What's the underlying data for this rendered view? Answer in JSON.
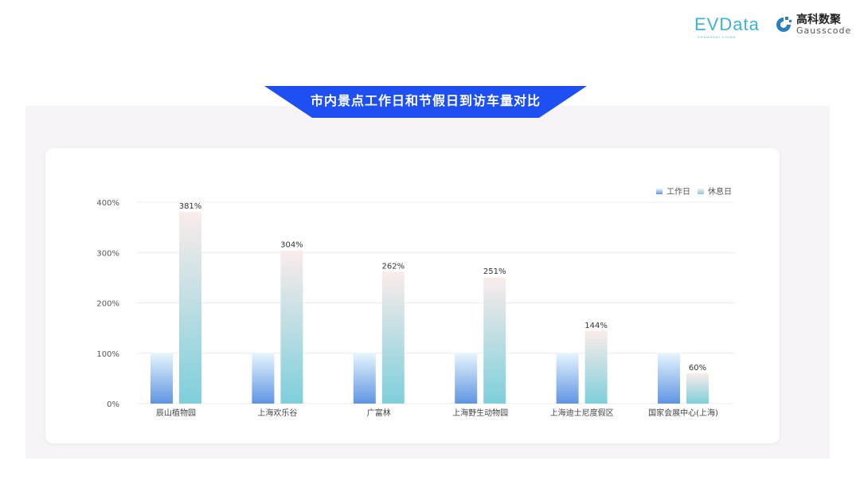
{
  "logos": {
    "evdata": "EVData",
    "evdata_sub": "SHANGHAI CHINA",
    "gauss_cn": "高科数聚",
    "gauss_en": "Gausscode"
  },
  "title": "市内景点工作日和节假日到访车量对比",
  "colors": {
    "banner": "#1d4ff2",
    "workday_top": "#e6f5fc",
    "workday_bottom": "#5f94e3",
    "holiday_top": "#fbeceb",
    "holiday_bottom": "#7dcfdb"
  },
  "chart_data": {
    "type": "bar",
    "categories": [
      "辰山植物园",
      "上海欢乐谷",
      "广富林",
      "上海野生动物园",
      "上海迪士尼度假区",
      "国家会展中心(上海)"
    ],
    "series": [
      {
        "name": "工作日",
        "values": [
          100,
          100,
          100,
          100,
          100,
          100
        ]
      },
      {
        "name": "休息日",
        "values": [
          381,
          304,
          262,
          251,
          144,
          60
        ],
        "labels": [
          "381%",
          "304%",
          "262%",
          "251%",
          "144%",
          "60%"
        ]
      }
    ],
    "yticks": [
      "0%",
      "100%",
      "200%",
      "300%",
      "400%"
    ],
    "ylim": [
      0,
      400
    ],
    "grid": true,
    "legend": "top-right"
  }
}
